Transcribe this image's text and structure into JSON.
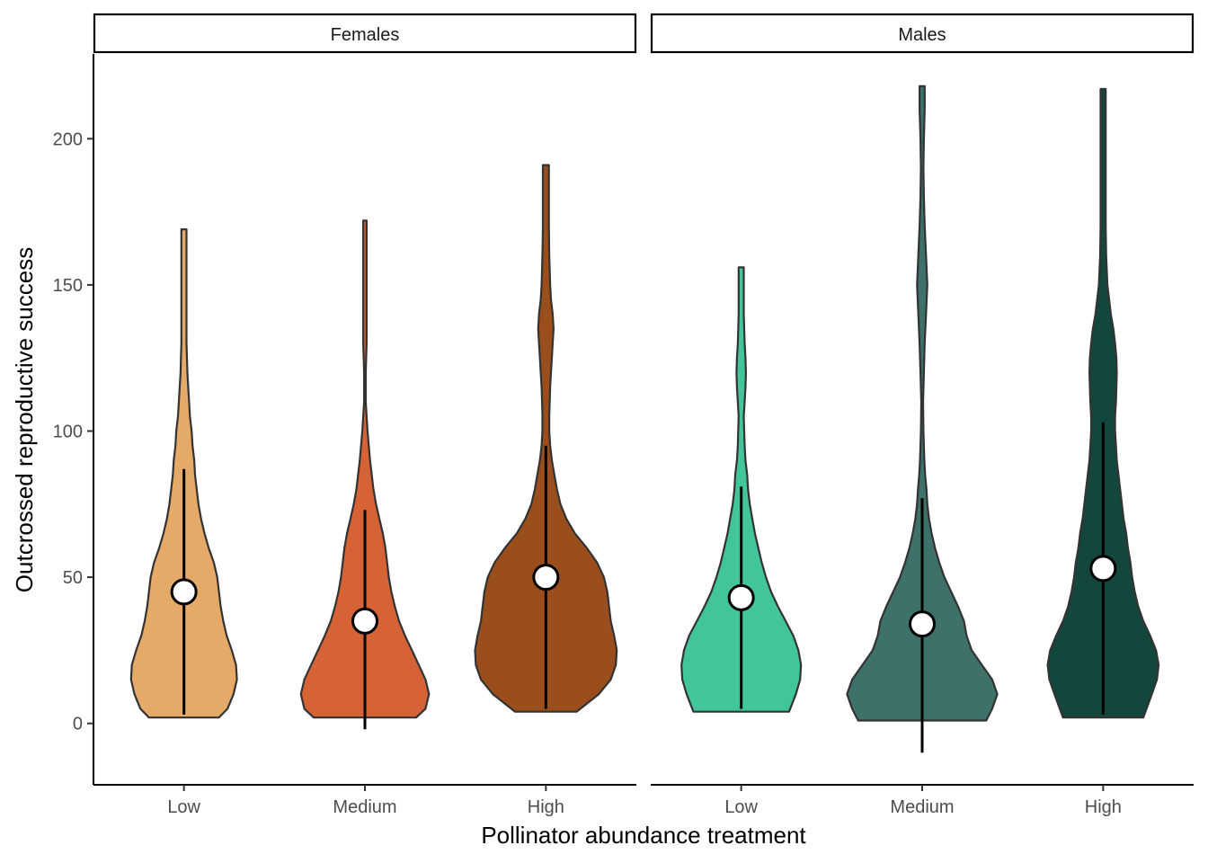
{
  "chart_data": {
    "type": "violin",
    "title": "",
    "xlabel": "Pollinator abundance treatment",
    "ylabel": "Outcrossed reproductive success",
    "ylim": [
      -21,
      229
    ],
    "yticks": [
      0,
      50,
      100,
      150,
      200
    ],
    "categories": [
      "Low",
      "Medium",
      "High"
    ],
    "grid": false,
    "legend": "none",
    "facets": [
      {
        "name": "Females",
        "groups": [
          {
            "category": "Low",
            "color": "#E6AA68",
            "min": 2,
            "max": 169,
            "mean": 45,
            "err_low": 3,
            "err_high": 87,
            "density": [
              [
                2,
                0.41
              ],
              [
                5,
                0.51
              ],
              [
                10,
                0.58
              ],
              [
                15,
                0.62
              ],
              [
                20,
                0.61
              ],
              [
                25,
                0.56
              ],
              [
                30,
                0.5
              ],
              [
                35,
                0.46
              ],
              [
                40,
                0.43
              ],
              [
                45,
                0.41
              ],
              [
                50,
                0.39
              ],
              [
                55,
                0.35
              ],
              [
                60,
                0.29
              ],
              [
                65,
                0.24
              ],
              [
                70,
                0.2
              ],
              [
                75,
                0.17
              ],
              [
                80,
                0.15
              ],
              [
                85,
                0.13
              ],
              [
                90,
                0.12
              ],
              [
                95,
                0.1
              ],
              [
                100,
                0.09
              ],
              [
                105,
                0.07
              ],
              [
                110,
                0.06
              ],
              [
                115,
                0.05
              ],
              [
                120,
                0.04
              ],
              [
                125,
                0.035
              ],
              [
                130,
                0.03
              ],
              [
                140,
                0.03
              ],
              [
                150,
                0.03
              ],
              [
                160,
                0.03
              ],
              [
                169,
                0.03
              ]
            ]
          },
          {
            "category": "Medium",
            "color": "#D66335",
            "min": 2,
            "max": 172,
            "mean": 35,
            "err_low": -2,
            "err_high": 73,
            "density": [
              [
                2,
                0.6
              ],
              [
                5,
                0.71
              ],
              [
                10,
                0.75
              ],
              [
                15,
                0.71
              ],
              [
                20,
                0.63
              ],
              [
                25,
                0.55
              ],
              [
                30,
                0.47
              ],
              [
                35,
                0.4
              ],
              [
                40,
                0.35
              ],
              [
                45,
                0.31
              ],
              [
                50,
                0.28
              ],
              [
                55,
                0.26
              ],
              [
                60,
                0.24
              ],
              [
                65,
                0.21
              ],
              [
                70,
                0.17
              ],
              [
                75,
                0.13
              ],
              [
                80,
                0.1
              ],
              [
                85,
                0.08
              ],
              [
                90,
                0.06
              ],
              [
                95,
                0.045
              ],
              [
                100,
                0.03
              ],
              [
                105,
                0.02
              ],
              [
                110,
                0.01
              ],
              [
                115,
                0.01
              ],
              [
                120,
                0.01
              ],
              [
                130,
                0.02
              ],
              [
                140,
                0.02
              ],
              [
                150,
                0.02
              ],
              [
                160,
                0.02
              ],
              [
                172,
                0.02
              ]
            ]
          },
          {
            "category": "High",
            "color": "#9A4E1C",
            "min": 4,
            "max": 191,
            "mean": 50,
            "err_low": 5,
            "err_high": 95,
            "density": [
              [
                4,
                0.36
              ],
              [
                10,
                0.62
              ],
              [
                15,
                0.76
              ],
              [
                20,
                0.82
              ],
              [
                25,
                0.83
              ],
              [
                30,
                0.8
              ],
              [
                35,
                0.76
              ],
              [
                40,
                0.74
              ],
              [
                45,
                0.72
              ],
              [
                50,
                0.68
              ],
              [
                55,
                0.6
              ],
              [
                60,
                0.48
              ],
              [
                65,
                0.34
              ],
              [
                70,
                0.24
              ],
              [
                75,
                0.17
              ],
              [
                80,
                0.13
              ],
              [
                85,
                0.1
              ],
              [
                90,
                0.07
              ],
              [
                95,
                0.05
              ],
              [
                100,
                0.04
              ],
              [
                105,
                0.04
              ],
              [
                110,
                0.045
              ],
              [
                115,
                0.05
              ],
              [
                120,
                0.06
              ],
              [
                125,
                0.07
              ],
              [
                130,
                0.08
              ],
              [
                135,
                0.09
              ],
              [
                140,
                0.08
              ],
              [
                145,
                0.06
              ],
              [
                150,
                0.05
              ],
              [
                160,
                0.04
              ],
              [
                170,
                0.035
              ],
              [
                180,
                0.035
              ],
              [
                191,
                0.035
              ]
            ]
          }
        ]
      },
      {
        "name": "Males",
        "groups": [
          {
            "category": "Low",
            "color": "#42C59B",
            "min": 4,
            "max": 156,
            "mean": 43,
            "err_low": 5,
            "err_high": 81,
            "density": [
              [
                4,
                0.56
              ],
              [
                10,
                0.64
              ],
              [
                15,
                0.69
              ],
              [
                20,
                0.7
              ],
              [
                25,
                0.67
              ],
              [
                30,
                0.61
              ],
              [
                35,
                0.52
              ],
              [
                40,
                0.43
              ],
              [
                45,
                0.35
              ],
              [
                50,
                0.29
              ],
              [
                55,
                0.24
              ],
              [
                60,
                0.2
              ],
              [
                65,
                0.16
              ],
              [
                70,
                0.13
              ],
              [
                75,
                0.1
              ],
              [
                80,
                0.08
              ],
              [
                85,
                0.07
              ],
              [
                90,
                0.05
              ],
              [
                95,
                0.04
              ],
              [
                100,
                0.035
              ],
              [
                105,
                0.03
              ],
              [
                110,
                0.04
              ],
              [
                115,
                0.05
              ],
              [
                120,
                0.055
              ],
              [
                125,
                0.05
              ],
              [
                130,
                0.04
              ],
              [
                140,
                0.03
              ],
              [
                150,
                0.03
              ],
              [
                156,
                0.03
              ]
            ]
          },
          {
            "category": "Medium",
            "color": "#3E7169",
            "min": 1,
            "max": 218,
            "mean": 34,
            "err_low": -10,
            "err_high": 77,
            "density": [
              [
                1,
                0.75
              ],
              [
                5,
                0.82
              ],
              [
                10,
                0.88
              ],
              [
                15,
                0.82
              ],
              [
                20,
                0.7
              ],
              [
                25,
                0.58
              ],
              [
                30,
                0.52
              ],
              [
                35,
                0.49
              ],
              [
                40,
                0.42
              ],
              [
                45,
                0.34
              ],
              [
                50,
                0.26
              ],
              [
                55,
                0.2
              ],
              [
                60,
                0.15
              ],
              [
                65,
                0.11
              ],
              [
                70,
                0.08
              ],
              [
                75,
                0.06
              ],
              [
                80,
                0.05
              ],
              [
                85,
                0.035
              ],
              [
                90,
                0.025
              ],
              [
                95,
                0.02
              ],
              [
                100,
                0.015
              ],
              [
                110,
                0.01
              ],
              [
                120,
                0.02
              ],
              [
                130,
                0.03
              ],
              [
                140,
                0.045
              ],
              [
                150,
                0.06
              ],
              [
                160,
                0.045
              ],
              [
                170,
                0.03
              ],
              [
                180,
                0.02
              ],
              [
                190,
                0.015
              ],
              [
                200,
                0.02
              ],
              [
                210,
                0.03
              ],
              [
                218,
                0.03
              ]
            ]
          },
          {
            "category": "High",
            "color": "#13463D",
            "min": 2,
            "max": 217,
            "mean": 53,
            "err_low": 3,
            "err_high": 103,
            "density": [
              [
                2,
                0.47
              ],
              [
                10,
                0.57
              ],
              [
                15,
                0.63
              ],
              [
                20,
                0.65
              ],
              [
                25,
                0.62
              ],
              [
                30,
                0.55
              ],
              [
                35,
                0.47
              ],
              [
                40,
                0.41
              ],
              [
                45,
                0.37
              ],
              [
                50,
                0.34
              ],
              [
                55,
                0.32
              ],
              [
                60,
                0.29
              ],
              [
                65,
                0.27
              ],
              [
                70,
                0.24
              ],
              [
                75,
                0.22
              ],
              [
                80,
                0.2
              ],
              [
                85,
                0.18
              ],
              [
                90,
                0.16
              ],
              [
                95,
                0.15
              ],
              [
                100,
                0.14
              ],
              [
                105,
                0.14
              ],
              [
                110,
                0.15
              ],
              [
                115,
                0.155
              ],
              [
                120,
                0.16
              ],
              [
                125,
                0.155
              ],
              [
                130,
                0.14
              ],
              [
                135,
                0.12
              ],
              [
                140,
                0.09
              ],
              [
                145,
                0.07
              ],
              [
                150,
                0.05
              ],
              [
                160,
                0.035
              ],
              [
                170,
                0.03
              ],
              [
                180,
                0.03
              ],
              [
                190,
                0.03
              ],
              [
                200,
                0.03
              ],
              [
                217,
                0.03
              ]
            ]
          }
        ]
      }
    ]
  }
}
